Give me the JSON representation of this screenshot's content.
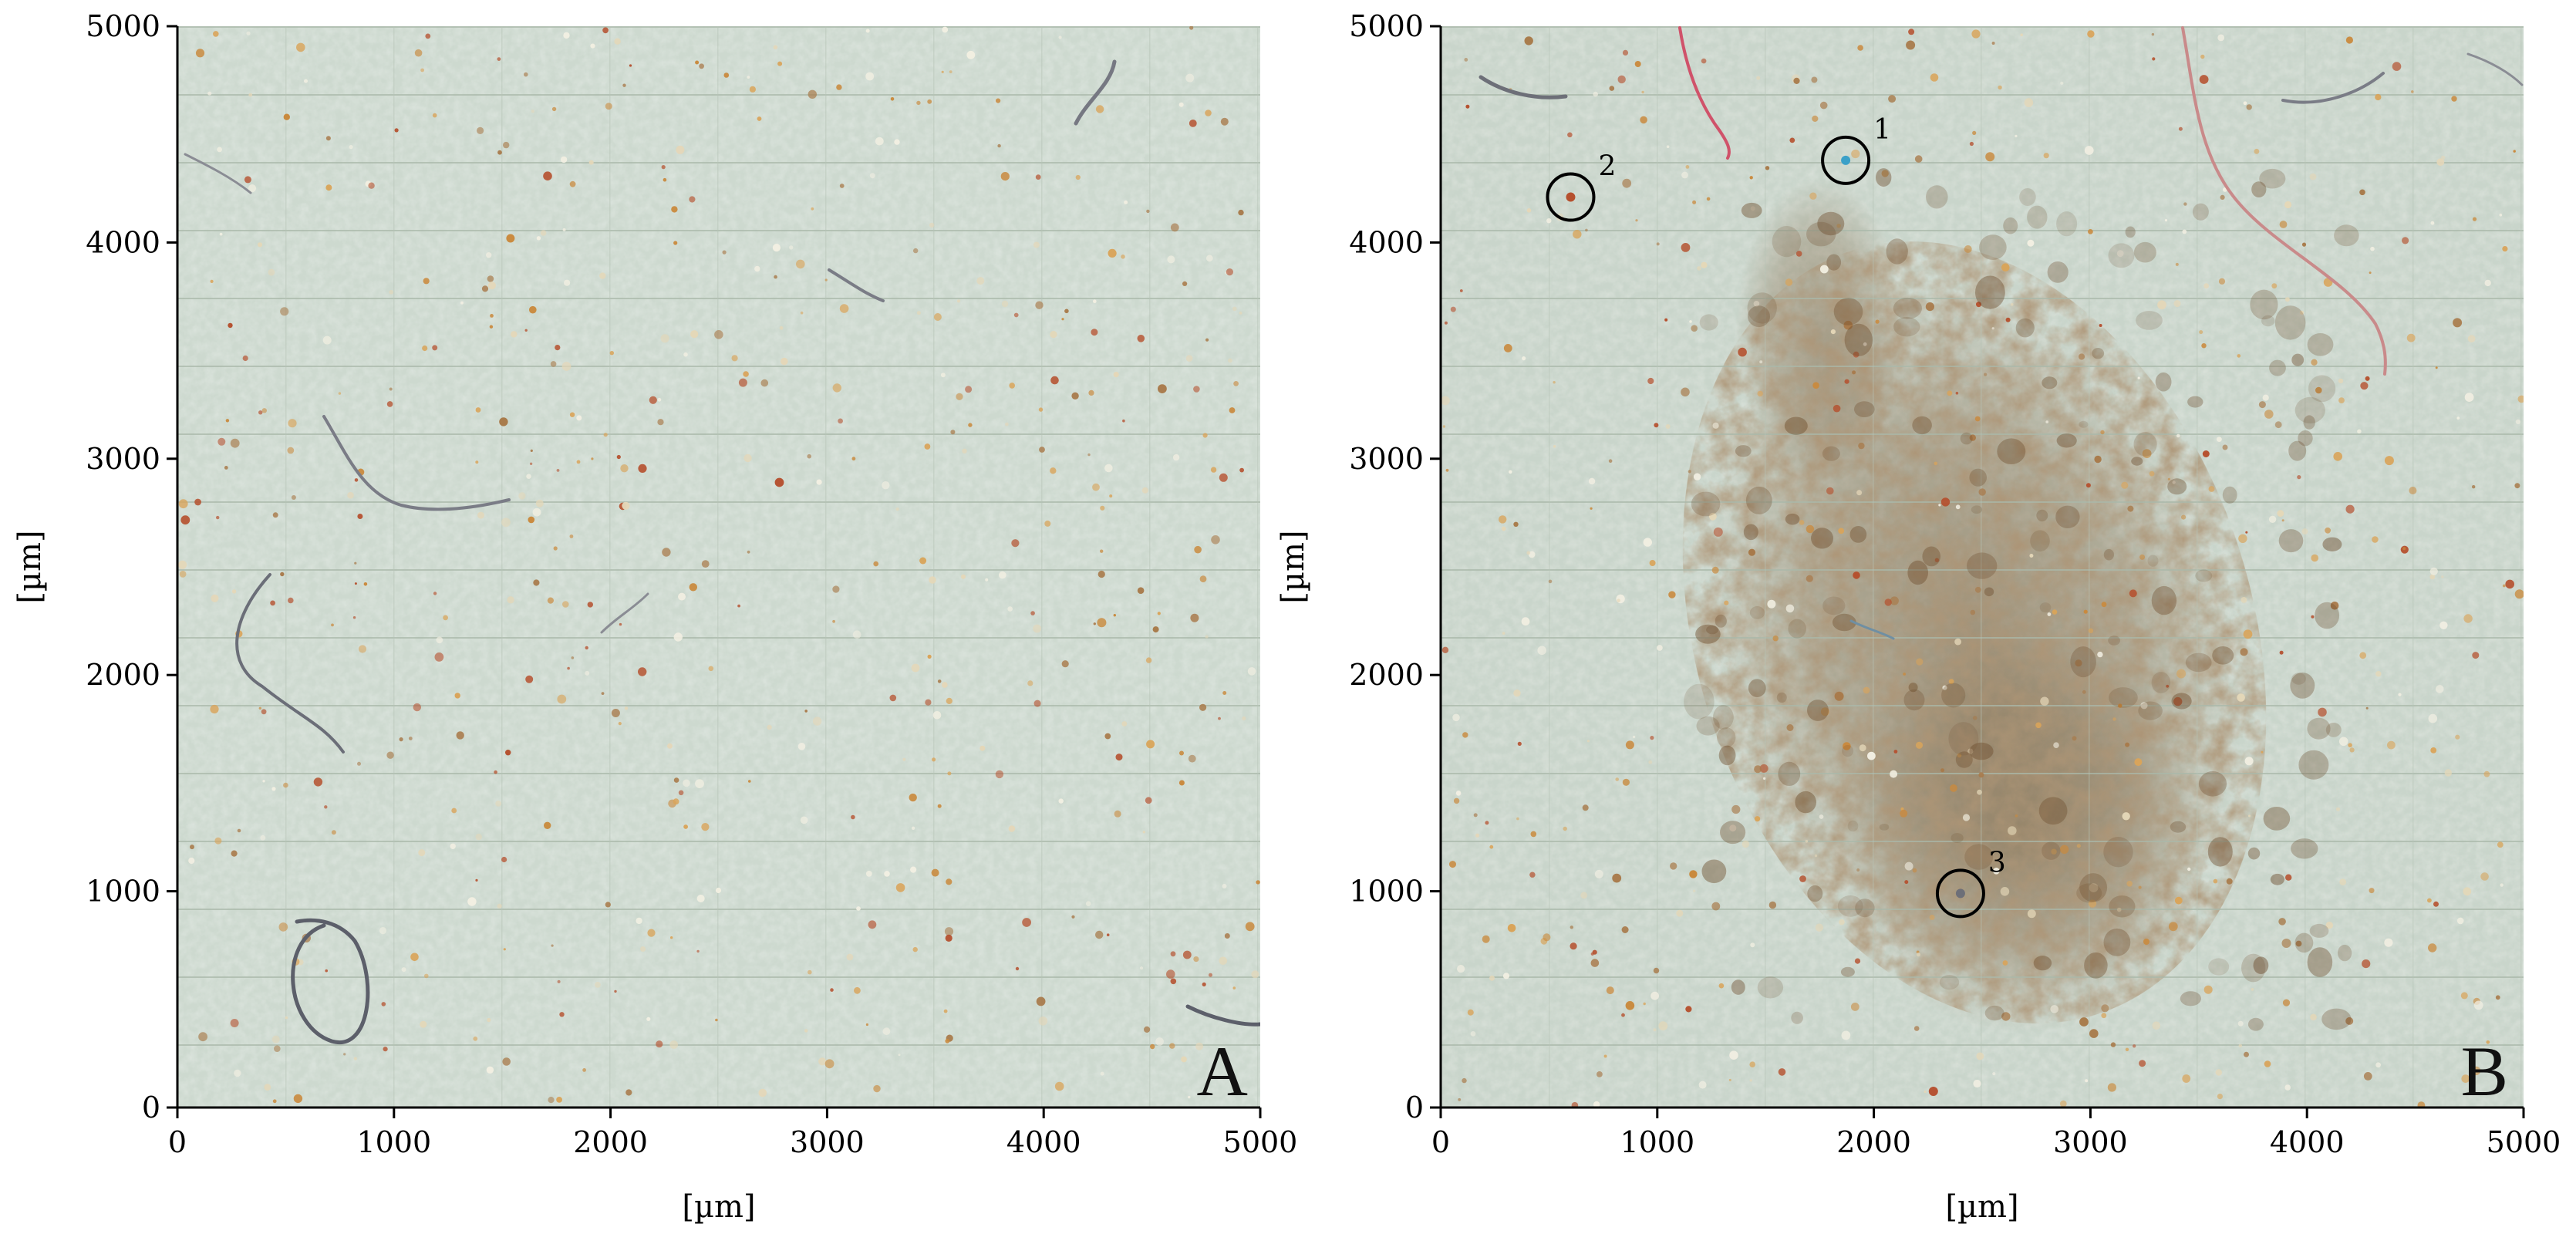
{
  "figure": {
    "panels": [
      {
        "id": "A",
        "letter": "A",
        "x_label": "[µm]",
        "y_label": "[µm]",
        "x_ticks": [
          "0",
          "1000",
          "2000",
          "3000",
          "4000",
          "5000"
        ],
        "y_ticks": [
          "0",
          "1000",
          "2000",
          "3000",
          "4000",
          "5000"
        ],
        "x_range": [
          0,
          5000
        ],
        "y_range": [
          0,
          5000
        ],
        "markers": []
      },
      {
        "id": "B",
        "letter": "B",
        "x_label": "[µm]",
        "y_label": "[µm]",
        "x_ticks": [
          "0",
          "1000",
          "2000",
          "3000",
          "4000",
          "5000"
        ],
        "y_ticks": [
          "0",
          "1000",
          "2000",
          "3000",
          "4000",
          "5000"
        ],
        "x_range": [
          0,
          5000
        ],
        "y_range": [
          0,
          5000
        ],
        "markers": [
          {
            "label": "1",
            "x": 1870,
            "y": 4380
          },
          {
            "label": "2",
            "x": 600,
            "y": 4210
          },
          {
            "label": "3",
            "x": 2400,
            "y": 990
          }
        ]
      }
    ],
    "colors": {
      "substrate": "#c9d6cc",
      "substrate_light": "#dbe5dc",
      "grid_line": "#aebcaf",
      "particle_orange": "#c98a3e",
      "particle_red": "#b5502e",
      "stain_brown": "#6b4a2a",
      "fiber_gray": "#6d6f78",
      "fiber_red": "#d0526a",
      "fiber_pink": "#c98a8a",
      "axis": "#000000"
    }
  }
}
